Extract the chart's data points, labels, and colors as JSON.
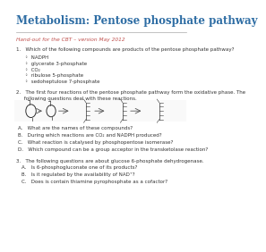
{
  "title": "Metabolism: Pentose phosphate pathway",
  "subtitle": "Hand-out for the CBT – version May 2012",
  "q1_text": "1.   Which of the following compounds are products of the pentose phosphate pathway?",
  "q1_options": [
    "NADPH",
    "glycerate 3-phosphate",
    "CO₂",
    "ribulose 5-phosphate",
    "sedoheptulose 7-phosphate"
  ],
  "q2_line1": "2.   The first four reactions of the pentose phosphate pathway form the oxidative phase. The",
  "q2_line2": "     following questions deal with these reactions.",
  "q2_subs": [
    "A.   What are the names of these compounds?",
    "B.   During which reactions are CO₂ and NADPH produced?",
    "C.   What reaction is catalysed by phosphopentose isomerase?",
    "D.   Which compound can be a group acceptor in the transketolase reaction?"
  ],
  "q3_text": "3.   The following questions are about glucose 6-phosphate dehydrogenase.",
  "q3_subs": [
    "A.   Is 6-phosphogluconate one of its products?",
    "B.   Is it regulated by the availability of NAD⁺?",
    "C.   Does is contain thiamine pyrophosphate as a cofactor?"
  ],
  "title_color": "#2e6da4",
  "subtitle_color": "#c0504d",
  "body_color": "#333333",
  "line_color": "#aaaaaa",
  "bg_color": "#ffffff"
}
